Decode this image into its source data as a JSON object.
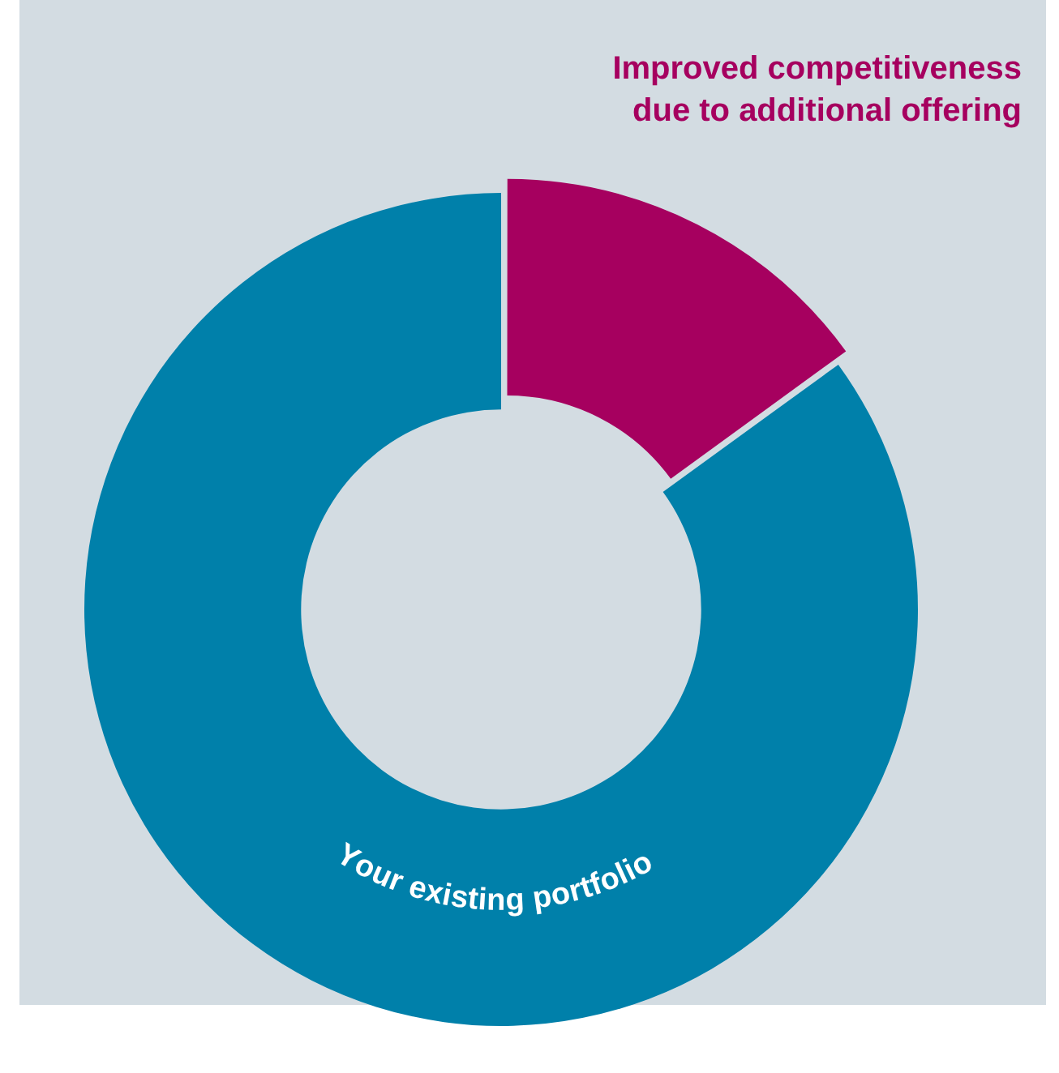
{
  "chart_data": {
    "type": "donut",
    "categories": [
      "Improved competitiveness due to additional offering",
      "Your existing portfolio"
    ],
    "values": [
      15,
      85
    ],
    "colors": [
      "#a6005f",
      "#0080aa"
    ]
  }
}
